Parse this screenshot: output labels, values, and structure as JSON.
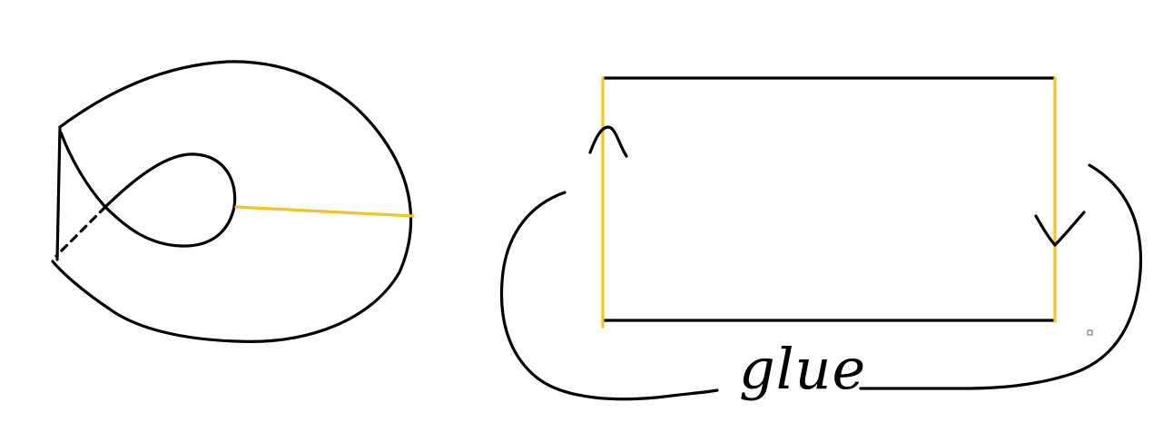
{
  "colors": {
    "background": "#ffffff",
    "ink": "#000000",
    "highlight": "#f5c518"
  },
  "left_figure": {
    "name": "surface-sketch",
    "highlighted_edge": "yellow-cut-line"
  },
  "right_figure": {
    "name": "rectangle",
    "glued_edges": [
      "left-edge",
      "right-edge"
    ],
    "arrows": {
      "left_edge": "up",
      "right_edge": "down"
    }
  },
  "label": {
    "glue_text": "glue"
  }
}
